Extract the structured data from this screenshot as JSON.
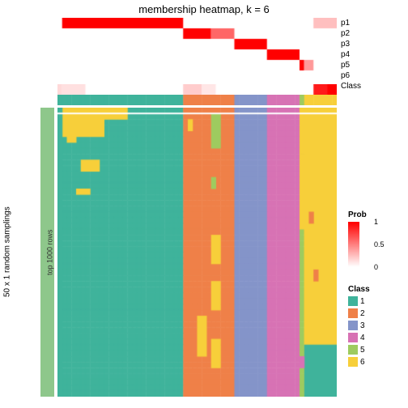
{
  "title": "membership heatmap, k = 6",
  "rowlabels": [
    "p1",
    "p2",
    "p3",
    "p4",
    "p5",
    "p6",
    "Class"
  ],
  "sidelabel": "50 x 1 random samplings",
  "rowslabel": "top 1000 rows",
  "ncols": 60,
  "nmainrows": 50,
  "prob_colors": {
    "low": "#ffffff",
    "high": "#ff0000"
  },
  "class_colors": {
    "1": "#3fb39b",
    "2": "#ef8048",
    "3": "#8494c9",
    "4": "#d772b4",
    "5": "#9ecb5f",
    "6": "#f7cf3a"
  },
  "sidebar_color": "#8ec78b",
  "background": "#ffffff",
  "column_class": [
    1,
    1,
    1,
    1,
    1,
    1,
    1,
    1,
    1,
    1,
    1,
    1,
    1,
    1,
    1,
    1,
    1,
    1,
    1,
    1,
    1,
    1,
    1,
    1,
    1,
    1,
    1,
    2,
    2,
    2,
    2,
    2,
    2,
    2,
    2,
    2,
    2,
    2,
    3,
    3,
    3,
    3,
    3,
    3,
    3,
    4,
    4,
    4,
    4,
    4,
    4,
    4,
    5,
    6,
    6,
    6,
    6,
    6,
    6,
    6
  ],
  "membership": {
    "rows": 6,
    "blocks": [
      {
        "row": 0,
        "c0": 1,
        "c1": 26,
        "v": 1.0
      },
      {
        "row": 0,
        "c0": 55,
        "c1": 59,
        "v": 0.25
      },
      {
        "row": 1,
        "c0": 27,
        "c1": 32,
        "v": 1.0
      },
      {
        "row": 1,
        "c0": 33,
        "c1": 37,
        "v": 0.6
      },
      {
        "row": 2,
        "c0": 38,
        "c1": 44,
        "v": 1.0
      },
      {
        "row": 3,
        "c0": 45,
        "c1": 51,
        "v": 1.0
      },
      {
        "row": 4,
        "c0": 52,
        "c1": 52,
        "v": 1.0
      },
      {
        "row": 4,
        "c0": 53,
        "c1": 54,
        "v": 0.4
      },
      {
        "row": 5,
        "c0": 0,
        "c1": 0,
        "v": 0.15
      },
      {
        "row": 5,
        "c0": 1,
        "c1": 5,
        "v": 0.12
      },
      {
        "row": 5,
        "c0": 27,
        "c1": 30,
        "v": 0.2
      },
      {
        "row": 5,
        "c0": 31,
        "c1": 33,
        "v": 0.1
      },
      {
        "row": 5,
        "c0": 55,
        "c1": 59,
        "v": 0.9
      },
      {
        "row": 5,
        "c0": 58,
        "c1": 59,
        "v": 1.0
      }
    ]
  },
  "main_overrides": [
    {
      "r0": 0,
      "r1": 1,
      "c0": 0,
      "c1": 0,
      "cls": 1
    },
    {
      "r0": 0,
      "r1": 4,
      "c0": 1,
      "c1": 9,
      "cls": 6
    },
    {
      "r0": 0,
      "r1": 1,
      "c0": 10,
      "c1": 14,
      "cls": 6
    },
    {
      "r0": 5,
      "r1": 5,
      "c0": 2,
      "c1": 3,
      "cls": 6
    },
    {
      "r0": 9,
      "r1": 10,
      "c0": 5,
      "c1": 8,
      "cls": 6
    },
    {
      "r0": 14,
      "r1": 14,
      "c0": 4,
      "c1": 6,
      "cls": 6
    },
    {
      "r0": 1,
      "r1": 6,
      "c0": 33,
      "c1": 34,
      "cls": 5
    },
    {
      "r0": 12,
      "r1": 13,
      "c0": 33,
      "c1": 33,
      "cls": 5
    },
    {
      "r0": 22,
      "r1": 26,
      "c0": 33,
      "c1": 34,
      "cls": 6
    },
    {
      "r0": 30,
      "r1": 34,
      "c0": 33,
      "c1": 34,
      "cls": 6
    },
    {
      "r0": 36,
      "r1": 42,
      "c0": 30,
      "c1": 31,
      "cls": 6
    },
    {
      "r0": 40,
      "r1": 44,
      "c0": 33,
      "c1": 34,
      "cls": 6
    },
    {
      "r0": 2,
      "r1": 3,
      "c0": 28,
      "c1": 28,
      "cls": 6
    },
    {
      "r0": 0,
      "r1": 7,
      "c0": 52,
      "c1": 52,
      "cls": 6
    },
    {
      "r0": 8,
      "r1": 20,
      "c0": 52,
      "c1": 52,
      "cls": 6
    },
    {
      "r0": 0,
      "r1": 40,
      "c0": 53,
      "c1": 59,
      "cls": 6
    },
    {
      "r0": 41,
      "r1": 49,
      "c0": 53,
      "c1": 59,
      "cls": 1
    },
    {
      "r0": 43,
      "r1": 44,
      "c0": 52,
      "c1": 52,
      "cls": 4
    },
    {
      "r0": 18,
      "r1": 19,
      "c0": 54,
      "c1": 54,
      "cls": 2
    },
    {
      "r0": 28,
      "r1": 29,
      "c0": 55,
      "c1": 55,
      "cls": 2
    },
    {
      "r0": 0,
      "r1": 49,
      "c0": 0,
      "c1": 0,
      "cls": 1
    }
  ],
  "legends": {
    "prob": {
      "title": "Prob",
      "ticks": [
        "1",
        "0.5",
        "0"
      ]
    },
    "class": {
      "title": "Class",
      "items": [
        "1",
        "2",
        "3",
        "4",
        "5",
        "6"
      ]
    }
  }
}
